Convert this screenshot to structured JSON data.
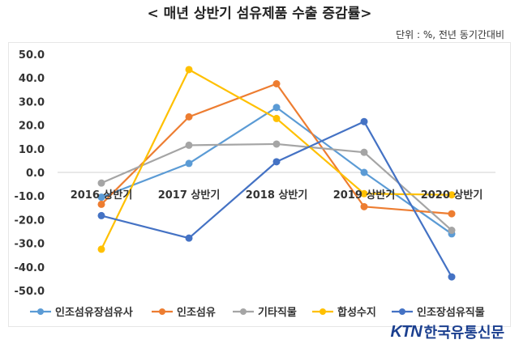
{
  "header": {
    "title": "< 매년 상반기 섬유제품 수출 증감률>",
    "unit_note": "단위 : %, 전년 동기간대비"
  },
  "logo": {
    "ktn": "KTN",
    "korean": "한국유통신문"
  },
  "chart_data": {
    "type": "line",
    "title": "< 매년 상반기 섬유제품 수출 증감률>",
    "xlabel": "",
    "ylabel": "",
    "categories": [
      "2016 상반기",
      "2017 상반기",
      "2018 상반기",
      "2019 상반기",
      "2020 상반기"
    ],
    "ylim": [
      -50,
      50
    ],
    "yticks": [
      "50.0",
      "40.0",
      "30.0",
      "20.0",
      "10.0",
      "0.0",
      "-10.0",
      "-20.0",
      "-30.0",
      "-40.0",
      "-50.0"
    ],
    "grid": false,
    "legend_position": "bottom",
    "series": [
      {
        "name": "인조섬유장섬유사",
        "color": "#5b9bd5",
        "values": [
          -10.5,
          3.8,
          27.5,
          0.0,
          -26.0
        ]
      },
      {
        "name": "인조섬유",
        "color": "#ed7d31",
        "values": [
          -13.5,
          23.5,
          37.5,
          -14.5,
          -17.5
        ]
      },
      {
        "name": "기타직물",
        "color": "#a5a5a5",
        "values": [
          -4.5,
          11.5,
          12.0,
          8.5,
          -24.5
        ]
      },
      {
        "name": "합성수지",
        "color": "#ffc000",
        "values": [
          -32.5,
          43.5,
          22.8,
          -9.0,
          -9.5
        ]
      },
      {
        "name": "인조장섬유직물",
        "color": "#4472c4",
        "values": [
          -18.3,
          -27.8,
          4.5,
          21.5,
          -44.2
        ]
      }
    ]
  }
}
